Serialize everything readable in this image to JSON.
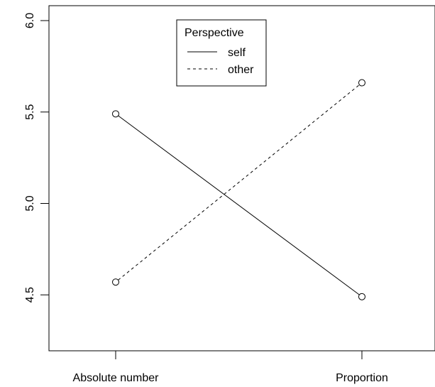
{
  "chart_data": {
    "type": "line",
    "title": "",
    "xlabel": "",
    "ylabel": "",
    "categories": [
      "Absolute number",
      "Proportion"
    ],
    "ylim": [
      4.2,
      6.05
    ],
    "yticks": [
      "4.5",
      "5.0",
      "5.5",
      "6.0"
    ],
    "grid": false,
    "series": [
      {
        "name": "self",
        "values": [
          5.49,
          4.49
        ],
        "line_style": "solid",
        "marker": "open-circle"
      },
      {
        "name": "other",
        "values": [
          4.57,
          5.66
        ],
        "line_style": "dashed",
        "marker": "open-circle"
      }
    ],
    "legend": {
      "title": "Perspective",
      "placement": "top-center"
    }
  }
}
